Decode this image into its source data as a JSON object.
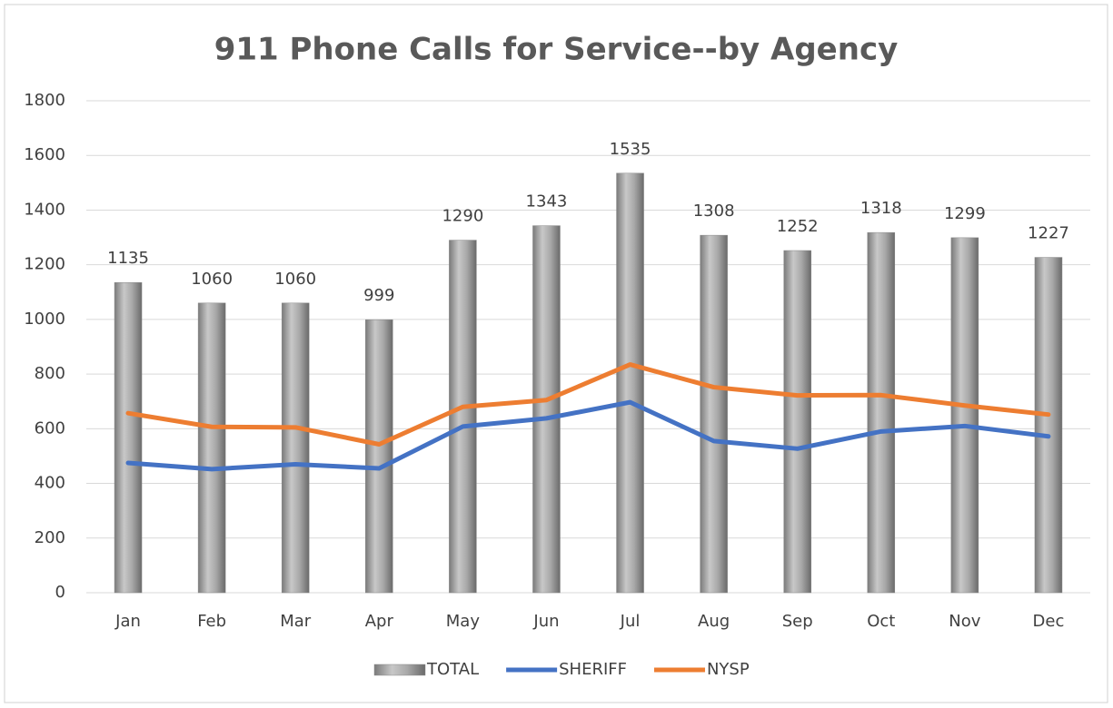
{
  "chart_data": {
    "type": "bar",
    "title": "911 Phone Calls for Service--by Agency",
    "categories": [
      "Jan",
      "Feb",
      "Mar",
      "Apr",
      "May",
      "Jun",
      "Jul",
      "Aug",
      "Sep",
      "Oct",
      "Nov",
      "Dec"
    ],
    "series": [
      {
        "name": "TOTAL",
        "type": "bar",
        "color": "#a0a0a0",
        "values": [
          1135,
          1060,
          1060,
          999,
          1290,
          1343,
          1535,
          1308,
          1252,
          1318,
          1299,
          1227
        ]
      },
      {
        "name": "SHERIFF",
        "type": "line",
        "color": "#4472c4",
        "values": [
          475,
          452,
          470,
          455,
          608,
          638,
          697,
          555,
          527,
          590,
          610,
          572
        ]
      },
      {
        "name": "NYSP",
        "type": "line",
        "color": "#ed7d31",
        "values": [
          657,
          607,
          605,
          543,
          680,
          705,
          835,
          752,
          722,
          723,
          685,
          652
        ]
      }
    ],
    "ylim": [
      0,
      1800
    ],
    "yticks": [
      0,
      200,
      400,
      600,
      800,
      1000,
      1200,
      1400,
      1600,
      1800
    ],
    "grid": true,
    "legend": "bottom"
  }
}
